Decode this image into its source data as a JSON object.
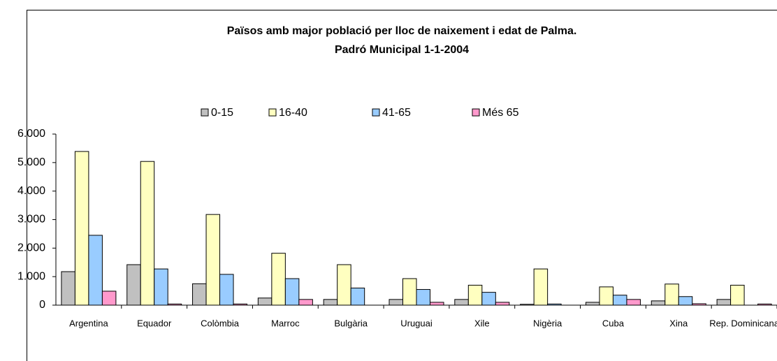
{
  "chart_data": {
    "type": "bar",
    "title": "Països amb major població per lloc de naixement i edat de Palma.",
    "subtitle": "Padró Municipal 1-1-2004",
    "categories": [
      "Argentina",
      "Equador",
      "Colòmbia",
      "Marroc",
      "Bulgària",
      "Uruguai",
      "Xile",
      "Nigèria",
      "Cuba",
      "Xina",
      "Rep. Dominicana"
    ],
    "series": [
      {
        "name": "0-15",
        "color": "#c0c0c0",
        "values": [
          1175,
          1420,
          750,
          250,
          200,
          200,
          200,
          30,
          100,
          150,
          200
        ]
      },
      {
        "name": "16-40",
        "color": "#ffffc0",
        "values": [
          5390,
          5040,
          3180,
          1820,
          1420,
          930,
          700,
          1270,
          640,
          740,
          700
        ]
      },
      {
        "name": "41-65",
        "color": "#99ccff",
        "values": [
          2450,
          1270,
          1080,
          930,
          600,
          550,
          450,
          40,
          350,
          300,
          0
        ]
      },
      {
        "name": "Més 65",
        "color": "#ff99cc",
        "values": [
          490,
          40,
          40,
          200,
          0,
          100,
          100,
          0,
          200,
          50,
          40
        ]
      }
    ],
    "ylim": [
      0,
      6000
    ],
    "yticks": [
      {
        "value": 0,
        "label": "0"
      },
      {
        "value": 1000,
        "label": "1.000"
      },
      {
        "value": 2000,
        "label": "2.000"
      },
      {
        "value": 3000,
        "label": "3.000"
      },
      {
        "value": 4000,
        "label": "4.000"
      },
      {
        "value": 5000,
        "label": "5.000"
      },
      {
        "value": 6000,
        "label": "6.000"
      }
    ],
    "grid": false,
    "legend": "top"
  }
}
